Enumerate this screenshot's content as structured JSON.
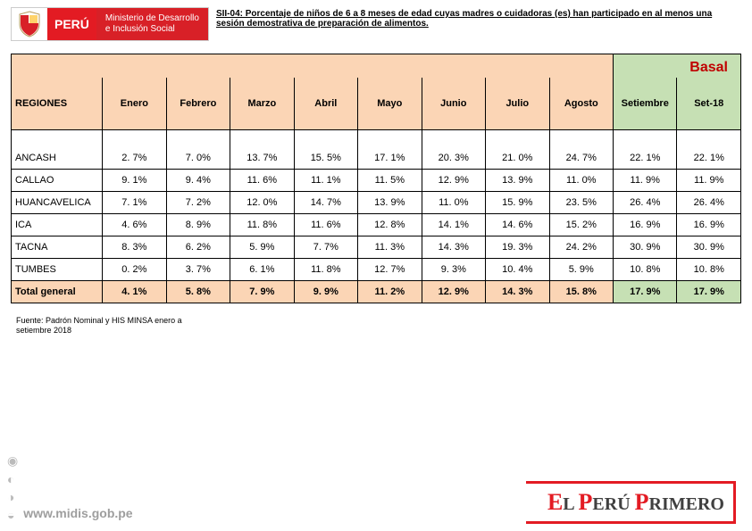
{
  "logo": {
    "peru": "PERÚ",
    "ministry_l1": "Ministerio de Desarrollo",
    "ministry_l2": "e Inclusión Social"
  },
  "title": "SII-04: Porcentaje de niños de 6 a 8 meses de edad cuyas madres o cuidadoras (es) han participado en al menos una sesión demostrativa de preparación de alimentos.",
  "basal_label": "Basal",
  "columns": [
    "REGIONES",
    "Enero",
    "Febrero",
    "Marzo",
    "Abril",
    "Mayo",
    "Junio",
    "Julio",
    "Agosto",
    "Setiembre",
    "Set-18"
  ],
  "rows": [
    {
      "region": "ANCASH",
      "vals": [
        "2. 7%",
        "7. 0%",
        "13. 7%",
        "15. 5%",
        "17. 1%",
        "20. 3%",
        "21. 0%",
        "24. 7%",
        "22. 1%",
        "22. 1%"
      ]
    },
    {
      "region": "CALLAO",
      "vals": [
        "9. 1%",
        "9. 4%",
        "11. 6%",
        "11. 1%",
        "11. 5%",
        "12. 9%",
        "13. 9%",
        "11. 0%",
        "11. 9%",
        "11. 9%"
      ]
    },
    {
      "region": "HUANCAVELICA",
      "vals": [
        "7. 1%",
        "7. 2%",
        "12. 0%",
        "14. 7%",
        "13. 9%",
        "11. 0%",
        "15. 9%",
        "23. 5%",
        "26. 4%",
        "26. 4%"
      ]
    },
    {
      "region": "ICA",
      "vals": [
        "4. 6%",
        "8. 9%",
        "11. 8%",
        "11. 6%",
        "12. 8%",
        "14. 1%",
        "14. 6%",
        "15. 2%",
        "16. 9%",
        "16. 9%"
      ]
    },
    {
      "region": "TACNA",
      "vals": [
        "8. 3%",
        "6. 2%",
        "5. 9%",
        "7. 7%",
        "11. 3%",
        "14. 3%",
        "19. 3%",
        "24. 2%",
        "30. 9%",
        "30. 9%"
      ]
    },
    {
      "region": "TUMBES",
      "vals": [
        "0. 2%",
        "3. 7%",
        "6. 1%",
        "11. 8%",
        "12. 7%",
        "9. 3%",
        "10. 4%",
        "5. 9%",
        "10. 8%",
        "10. 8%"
      ]
    }
  ],
  "totals": {
    "region": "Total general",
    "vals": [
      "4. 1%",
      "5. 8%",
      "7. 9%",
      "9. 9%",
      "11. 2%",
      "12. 9%",
      "14. 3%",
      "15. 8%",
      "17. 9%",
      "17. 9%"
    ]
  },
  "source": "Fuente: Padrón Nominal y HIS MINSA enero a setiembre 2018",
  "footer": {
    "url": "www.midis.gob.pe",
    "brand_el": "E",
    "brand_l": "L ",
    "brand_p1": "P",
    "brand_eru": "ERÚ ",
    "brand_p2": "P",
    "brand_rimero": "RIMERO"
  },
  "style": {
    "peach": "#fbd5b5",
    "green": "#c6e0b4",
    "accent_red": "#e31b23",
    "basal_red": "#c00000"
  }
}
